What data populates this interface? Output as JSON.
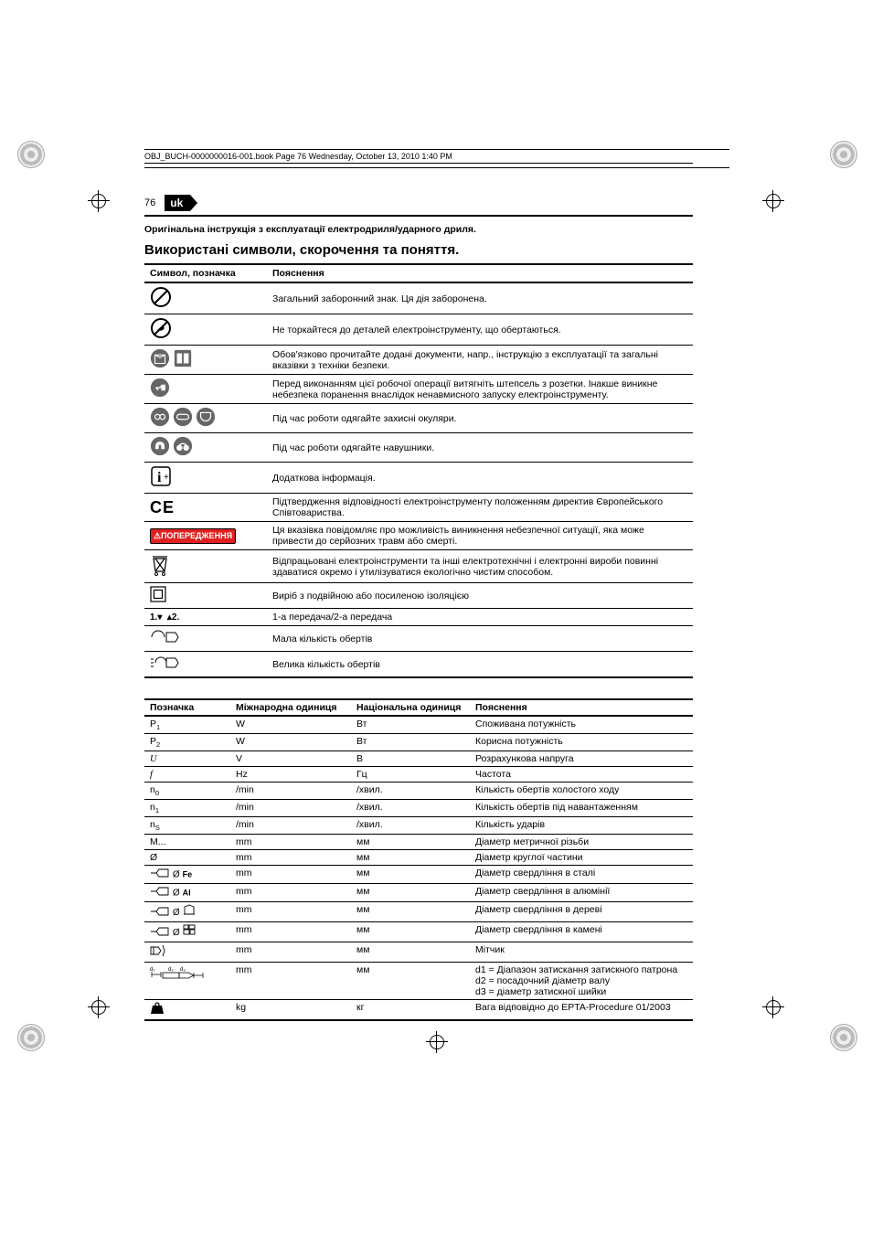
{
  "header": {
    "book_line": "OBJ_BUCH-0000000016-001.book  Page 76  Wednesday, October 13, 2010  1:40 PM",
    "page_number": "76",
    "lang_code": "uk"
  },
  "subtitle": "Оригінальна інструкція з експлуатації електродриля/ударного дриля.",
  "section_title": "Використані символи, скорочення та поняття.",
  "symbols": {
    "head": {
      "col1": "Символ, позначка",
      "col2": "Пояснення"
    },
    "rows": [
      {
        "desc": "Загальний заборонний знак. Ця дія заборонена."
      },
      {
        "desc": "Не торкайтеся до деталей електроінструменту, що обертаються."
      },
      {
        "desc": "Обов'язково прочитайте додані документи, напр., інструкцію з експлуатації та загальні вказівки з техніки безпеки."
      },
      {
        "desc": "Перед виконанням цієї робочої операції витягніть штепсель з розетки. Інакше виникне небезпека поранення внаслідок ненавмисного запуску електроінструменту."
      },
      {
        "desc": "Під час роботи одягайте захисні окуляри."
      },
      {
        "desc": "Під час роботи одягайте навушники."
      },
      {
        "desc": "Додаткова інформація."
      },
      {
        "desc": "Підтвердження відповідності електроінструменту положенням директив Європейського Співтовариства."
      },
      {
        "desc": "Ця вказівка повідомляє про можливість виникнення небезпечної ситуації, яка може привести до серйозних травм або смерті."
      },
      {
        "desc": "Відпрацьовані електроінструменти та інші електротехнічні і електронні вироби повинні здаватися окремо і утилізуватися екологічно чистим способом."
      },
      {
        "desc": "Виріб з подвійною або посиленою ізоляцією"
      },
      {
        "label": "1. / 2.",
        "desc": "1-а передача/2-а передача"
      },
      {
        "desc": "Мала кількість обертів"
      },
      {
        "desc": "Велика кількість обертів"
      }
    ]
  },
  "units": {
    "head": {
      "c1": "Позначка",
      "c2": "Міжнародна одиниця",
      "c3": "Національна одиниця",
      "c4": "Пояснення"
    },
    "rows": [
      {
        "sym": "P",
        "sub": "1",
        "intl": "W",
        "nat": "Вт",
        "desc": "Споживана потужність"
      },
      {
        "sym": "P",
        "sub": "2",
        "intl": "W",
        "nat": "Вт",
        "desc": "Корисна потужність"
      },
      {
        "sym": "U",
        "ital": true,
        "intl": "V",
        "nat": "В",
        "desc": "Розрахункова напруга"
      },
      {
        "sym": "f",
        "ital": true,
        "intl": "Hz",
        "nat": "Гц",
        "desc": "Частота"
      },
      {
        "sym": "n",
        "sub": "0",
        "intl": "/min",
        "nat": "/хвил.",
        "desc": "Кількість обертів холостого ходу"
      },
      {
        "sym": "n",
        "sub": "1",
        "intl": "/min",
        "nat": "/хвил.",
        "desc": "Кількість обертів під навантаженням"
      },
      {
        "sym": "n",
        "sub": "S",
        "intl": "/min",
        "nat": "/хвил.",
        "desc": "Кількість ударів"
      },
      {
        "sym": "M...",
        "intl": "mm",
        "nat": "мм",
        "desc": "Діаметр метричної різьби"
      },
      {
        "sym": "Ø",
        "intl": "mm",
        "nat": "мм",
        "desc": "Діаметр круглої частини"
      },
      {
        "mat": "Fe",
        "intl": "mm",
        "nat": "мм",
        "desc": "Діаметр свердління в сталі"
      },
      {
        "mat": "Al",
        "intl": "mm",
        "nat": "мм",
        "desc": "Діаметр свердління в алюмінії"
      },
      {
        "mat": "wood",
        "intl": "mm",
        "nat": "мм",
        "desc": "Діаметр свердління в дереві"
      },
      {
        "mat": "stone",
        "intl": "mm",
        "nat": "мм",
        "desc": "Діаметр свердління в камені"
      },
      {
        "icon": "chuck",
        "intl": "mm",
        "nat": "мм",
        "desc": "Мітчик"
      },
      {
        "icon": "d123",
        "intl": "mm",
        "nat": "мм",
        "desc": "d1 = Діапазон затискання затискного патрона\nd2 = посадочний діаметр валу\nd3 = діаметр затискної шийки"
      },
      {
        "icon": "weight",
        "intl": "kg",
        "nat": "кг",
        "desc": "Вага відповідно до EPTA-Procedure 01/2003"
      }
    ]
  },
  "colors": {
    "warn_bg": "#e02020",
    "text": "#000000",
    "icon_fill": "#666666"
  }
}
